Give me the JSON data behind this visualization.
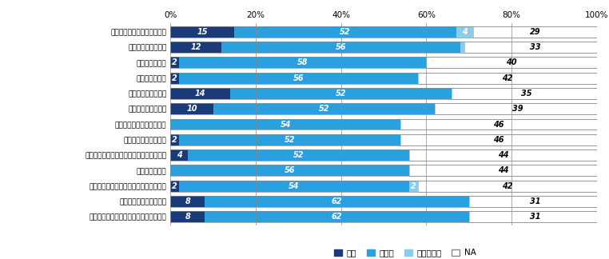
{
  "categories": [
    "事件に関して捕査が行われた",
    "加害者が逢捕された",
    "不起訴となった",
    "罰金刑となった",
    "刑事裁判が行われた",
    "実刑判決が確定した",
    "執行猿予付判決が確定した",
    "少年院送致が確定した",
    "「少年院送致」以外の保護処分が確定した",
    "無罪が確定した",
    "加害者が刑務所・少年院から釈放された",
    "加害者から謝罪があった",
    "加害者から示談金・賞償金が支払われた"
  ],
  "hai": [
    15,
    12,
    2,
    2,
    14,
    10,
    0,
    2,
    4,
    0,
    2,
    8,
    8
  ],
  "iie": [
    52,
    56,
    58,
    56,
    52,
    52,
    54,
    52,
    52,
    56,
    54,
    62,
    62
  ],
  "wakaranai": [
    4,
    1,
    0,
    0,
    0,
    0,
    0,
    0,
    0,
    0,
    2,
    0,
    0
  ],
  "na": [
    29,
    33,
    40,
    42,
    35,
    39,
    46,
    46,
    44,
    44,
    42,
    31,
    31
  ],
  "color_hai": "#1a3a7a",
  "color_iie": "#29a0e0",
  "color_wakaranai": "#87ceeb",
  "color_na": "#ffffff",
  "color_na_border": "#aaaaaa",
  "legend_labels": [
    "はい",
    "いいえ",
    "わからない",
    "NA"
  ],
  "xlabel_ticks": [
    "0%",
    "20%",
    "40%",
    "60%",
    "80%",
    "100%"
  ],
  "xlabel_vals": [
    0,
    20,
    40,
    60,
    80,
    100
  ],
  "bar_height": 0.72,
  "row_gap_color": "#ffffff"
}
